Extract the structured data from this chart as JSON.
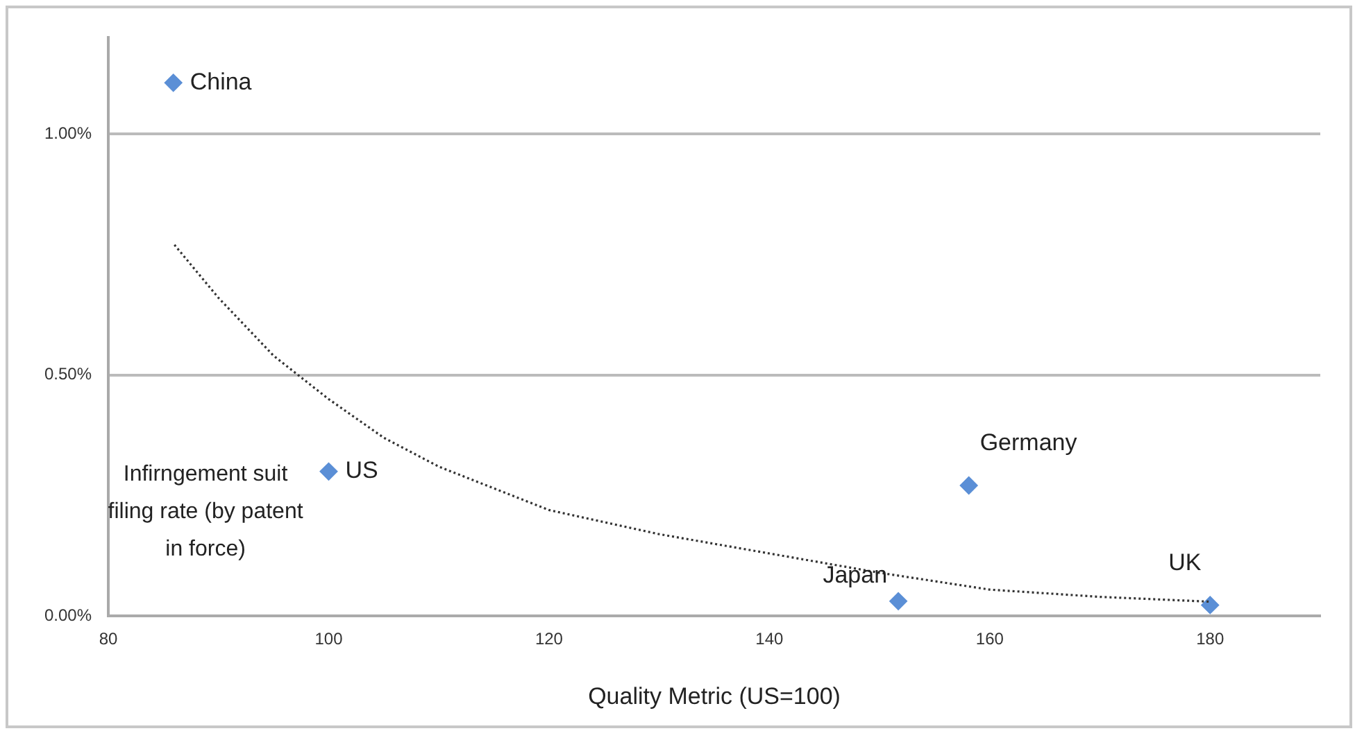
{
  "chart_data": {
    "type": "scatter",
    "xlabel": "Quality Metric (US=100)",
    "ylabel": "Infirngement suit filing rate (by patent in force)",
    "xlim": [
      80,
      190
    ],
    "xticks": [
      80,
      100,
      120,
      140,
      160,
      180
    ],
    "ylim": [
      0,
      1.2
    ],
    "yticks": [
      {
        "value": 0,
        "label": "0.00%"
      },
      {
        "value": 0.5,
        "label": "0.50%"
      },
      {
        "value": 1,
        "label": "1.00%"
      }
    ],
    "grid": "y",
    "legend": false,
    "series": [
      {
        "color": "#5b8fd6",
        "marker": "diamond",
        "x": [
          85.9,
          100,
          158.1,
          151.7,
          180
        ],
        "values": [
          1.106,
          0.3,
          0.271,
          0.031,
          0.023
        ]
      },
      {
        "type": "line",
        "color": "#333333",
        "marker": "none",
        "line_style": "dotted",
        "x": [
          86,
          90,
          95,
          100,
          105,
          110,
          120,
          130,
          140,
          150,
          160,
          170,
          180
        ],
        "values": [
          0.77,
          0.66,
          0.54,
          0.45,
          0.37,
          0.31,
          0.22,
          0.17,
          0.13,
          0.09,
          0.055,
          0.04,
          0.03
        ]
      }
    ],
    "annotations": [
      {
        "text": "China",
        "x": 85.9,
        "y": 1.106
      },
      {
        "text": "US",
        "x": 100,
        "y": 0.3
      },
      {
        "text": "Germany",
        "x": 158.1,
        "y": 0.271
      },
      {
        "text": "Japan",
        "x": 151.7,
        "y": 0.031
      },
      {
        "text": "UK",
        "x": 180,
        "y": 0.023
      }
    ]
  }
}
